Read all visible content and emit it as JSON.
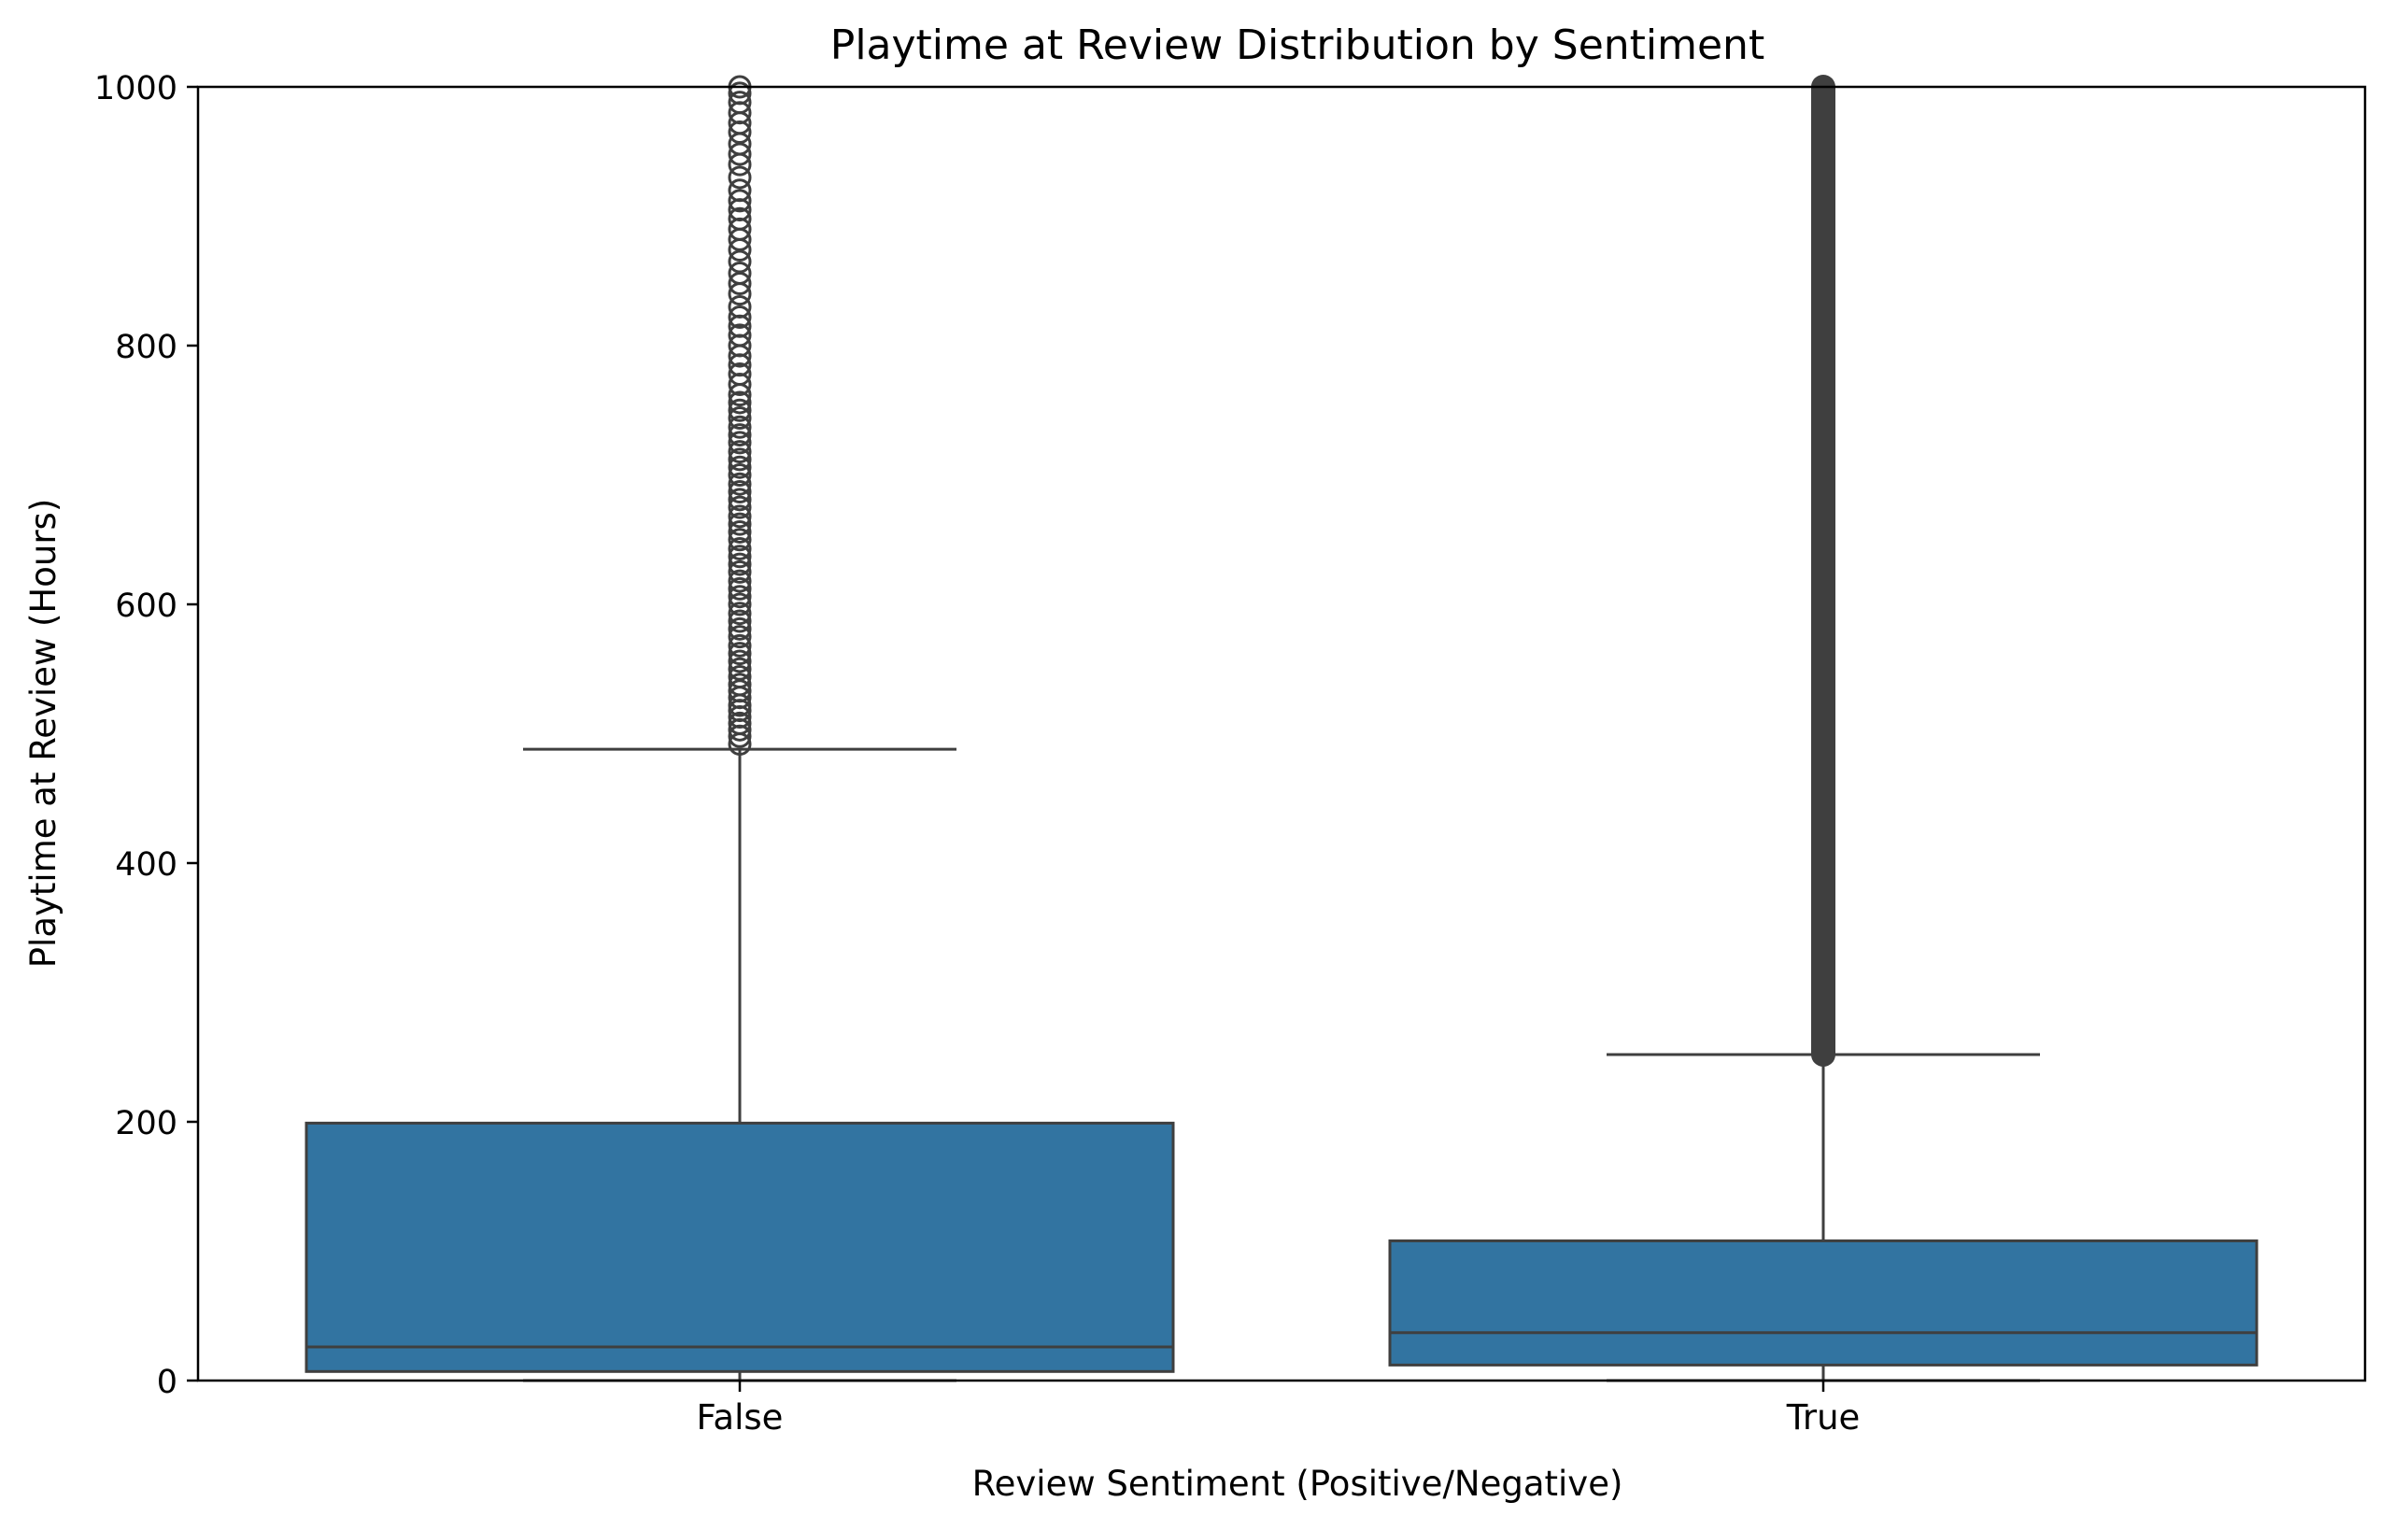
{
  "chart_data": {
    "type": "box",
    "title": "Playtime at Review Distribution by Sentiment",
    "xlabel": "Review Sentiment (Positive/Negative)",
    "ylabel": "Playtime at Review (Hours)",
    "ylim": [
      0,
      1000
    ],
    "yticks": [
      0,
      200,
      400,
      600,
      800,
      1000
    ],
    "categories": [
      "False",
      "True"
    ],
    "box_color": "#3274a1",
    "line_color": "#3f3f3f",
    "grid": false,
    "legend": "none",
    "boxes": [
      {
        "category": "False",
        "whisker_low": 0,
        "q1": 7,
        "median": 26,
        "q3": 199,
        "whisker_high": 488,
        "outliers_range": [
          490,
          1000
        ],
        "outliers": [
          492,
          498,
          503,
          508,
          513,
          518,
          522,
          528,
          533,
          538,
          544,
          550,
          556,
          562,
          568,
          575,
          581,
          587,
          593,
          600,
          606,
          612,
          618,
          625,
          631,
          637,
          643,
          650,
          656,
          662,
          668,
          675,
          681,
          687,
          693,
          700,
          706,
          712,
          718,
          725,
          731,
          737,
          744,
          750,
          756,
          762,
          770,
          778,
          785,
          792,
          800,
          808,
          815,
          822,
          830,
          840,
          848,
          856,
          865,
          874,
          882,
          890,
          898,
          905,
          912,
          920,
          930,
          940,
          948,
          956,
          965,
          972,
          980,
          988,
          995,
          1000
        ]
      },
      {
        "category": "True",
        "whisker_low": 0,
        "q1": 12,
        "median": 37,
        "q3": 108,
        "whisker_high": 252,
        "outliers_range": [
          252,
          1000
        ]
      }
    ]
  }
}
